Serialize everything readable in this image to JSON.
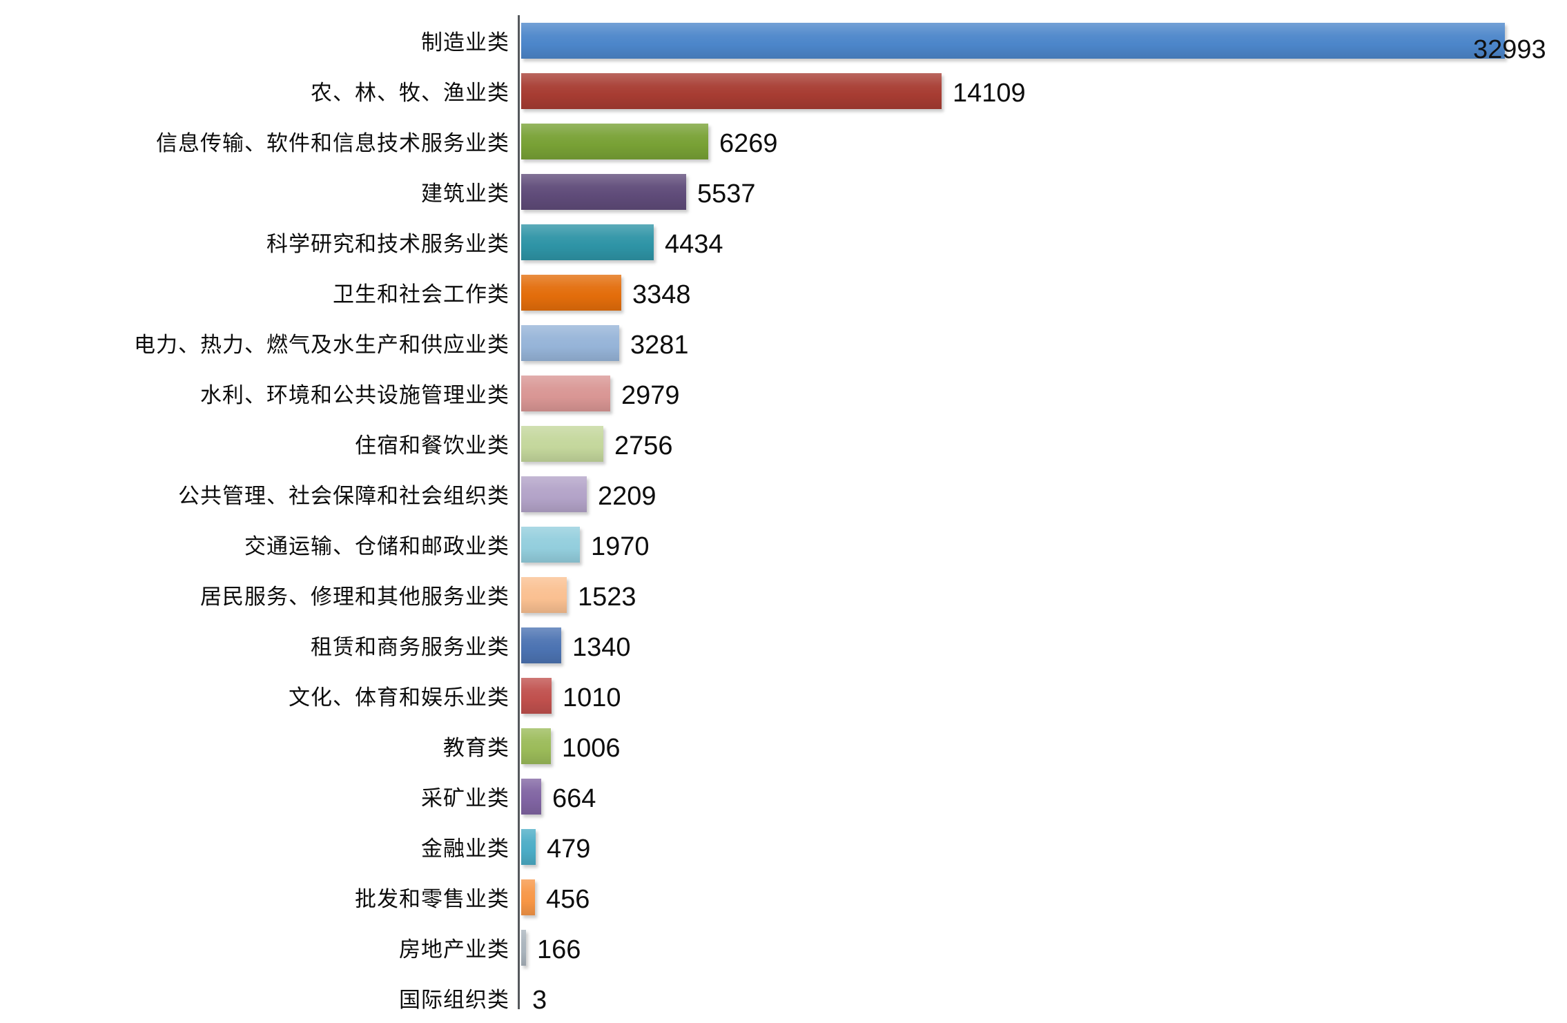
{
  "chart_data": {
    "type": "bar",
    "orientation": "horizontal",
    "title": "",
    "xlabel": "",
    "ylabel": "",
    "grid": false,
    "legend": "none",
    "xlim": [
      0,
      33000
    ],
    "axis_line_color": "#55585c",
    "categories": [
      "制造业类",
      "农、林、牧、渔业类",
      "信息传输、软件和信息技术服务业类",
      "建筑业类",
      "科学研究和技术服务业类",
      "卫生和社会工作类",
      "电力、热力、燃气及水生产和供应业类",
      "水利、环境和公共设施管理业类",
      "住宿和餐饮业类",
      "公共管理、社会保障和社会组织类",
      "交通运输、仓储和邮政业类",
      "居民服务、修理和其他服务业类",
      "租赁和商务服务业类",
      "文化、体育和娱乐业类",
      "教育类",
      "采矿业类",
      "金融业类",
      "批发和零售业类",
      "房地产业类",
      "国际组织类"
    ],
    "values": [
      32993,
      14109,
      6269,
      5537,
      4434,
      3348,
      3281,
      2979,
      2756,
      2209,
      1970,
      1523,
      1340,
      1010,
      1006,
      664,
      479,
      456,
      166,
      3
    ],
    "value_labels": [
      "32993",
      "14109",
      "6269",
      "5537",
      "4434",
      "3348",
      "3281",
      "2979",
      "2756",
      "2209",
      "1970",
      "1523",
      "1340",
      "1010",
      "1006",
      "664",
      "479",
      "456",
      "166",
      "3"
    ],
    "bar_colors": [
      "#4C86CA",
      "#A73C32",
      "#78A135",
      "#5F4B79",
      "#2E94A6",
      "#E36D0B",
      "#96B4D8",
      "#D99694",
      "#C4D79C",
      "#B3A3C8",
      "#93CEDD",
      "#FAC091",
      "#4C73B2",
      "#C0504D",
      "#9BBB59",
      "#8064A2",
      "#4BACC6",
      "#F79646",
      "#A9B3BC",
      "#C9CDD1"
    ]
  }
}
